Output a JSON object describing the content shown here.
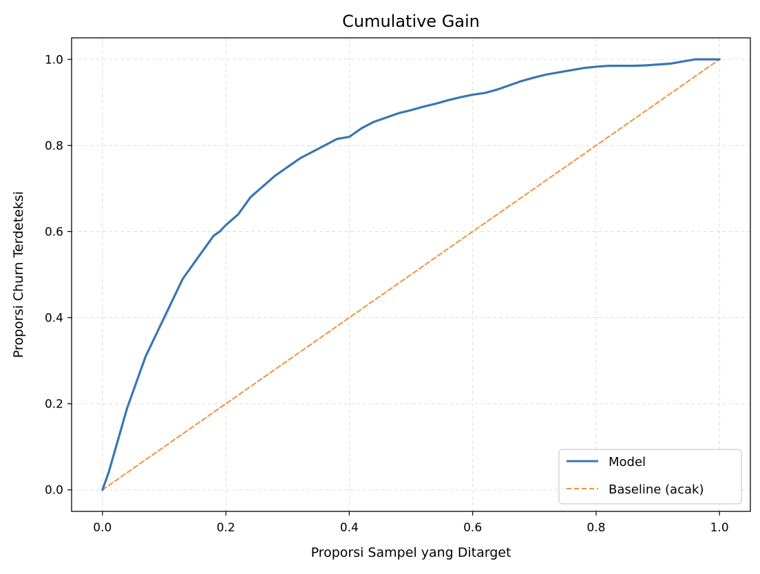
{
  "chart_data": {
    "type": "line",
    "title": "Cumulative Gain",
    "xlabel": "Proporsi Sampel yang Ditarget",
    "ylabel": "Proporsi Churn Terdeteksi",
    "xlim": [
      -0.05,
      1.05
    ],
    "ylim": [
      -0.05,
      1.05
    ],
    "xticks": [
      "0.0",
      "0.2",
      "0.4",
      "0.6",
      "0.8",
      "1.0"
    ],
    "yticks": [
      "0.0",
      "0.2",
      "0.4",
      "0.6",
      "0.8",
      "1.0"
    ],
    "grid": true,
    "legend_position": "lower-right",
    "series": [
      {
        "name": "Model",
        "color": "#3a75b0",
        "style": "solid",
        "x": [
          0.0,
          0.01,
          0.02,
          0.03,
          0.04,
          0.05,
          0.06,
          0.07,
          0.08,
          0.09,
          0.1,
          0.11,
          0.12,
          0.13,
          0.14,
          0.15,
          0.16,
          0.17,
          0.18,
          0.19,
          0.2,
          0.22,
          0.24,
          0.26,
          0.28,
          0.3,
          0.32,
          0.34,
          0.36,
          0.38,
          0.4,
          0.42,
          0.44,
          0.46,
          0.48,
          0.5,
          0.52,
          0.54,
          0.56,
          0.58,
          0.6,
          0.62,
          0.64,
          0.66,
          0.68,
          0.7,
          0.72,
          0.74,
          0.76,
          0.78,
          0.8,
          0.82,
          0.84,
          0.86,
          0.88,
          0.9,
          0.92,
          0.94,
          0.96,
          0.98,
          1.0
        ],
        "y": [
          0.0,
          0.04,
          0.09,
          0.14,
          0.19,
          0.23,
          0.27,
          0.31,
          0.34,
          0.37,
          0.4,
          0.43,
          0.46,
          0.49,
          0.51,
          0.53,
          0.55,
          0.57,
          0.59,
          0.6,
          0.615,
          0.64,
          0.68,
          0.705,
          0.73,
          0.75,
          0.77,
          0.785,
          0.8,
          0.815,
          0.82,
          0.84,
          0.855,
          0.865,
          0.875,
          0.882,
          0.89,
          0.897,
          0.905,
          0.912,
          0.918,
          0.922,
          0.93,
          0.94,
          0.95,
          0.958,
          0.965,
          0.97,
          0.975,
          0.98,
          0.983,
          0.985,
          0.985,
          0.985,
          0.986,
          0.988,
          0.99,
          0.995,
          1.0,
          1.0,
          1.0
        ]
      },
      {
        "name": "Baseline (acak)",
        "color": "#f0913a",
        "style": "dashed",
        "x": [
          0.0,
          1.0
        ],
        "y": [
          0.0,
          1.0
        ]
      }
    ]
  }
}
